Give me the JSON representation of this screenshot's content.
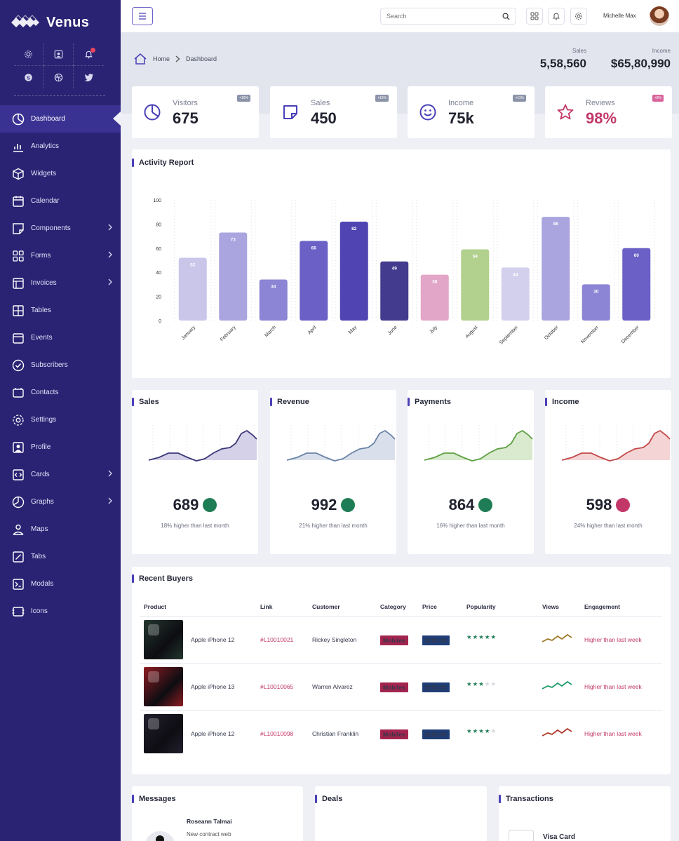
{
  "app": {
    "name": "Venus",
    "user_name": "Michelle Max"
  },
  "sidebar": {
    "quick_icons": [
      "gear-icon",
      "user-card-icon",
      "bell-icon",
      "skype-icon",
      "dribbble-icon",
      "twitter-icon"
    ],
    "items": [
      {
        "label": "Dashboard",
        "icon": "dashboard-icon",
        "active": true,
        "submenu": false
      },
      {
        "label": "Analytics",
        "icon": "analytics-icon",
        "active": false,
        "submenu": false
      },
      {
        "label": "Widgets",
        "icon": "widgets-icon",
        "active": false,
        "submenu": false
      },
      {
        "label": "Calendar",
        "icon": "calendar-icon",
        "active": false,
        "submenu": false
      },
      {
        "label": "Components",
        "icon": "components-icon",
        "active": false,
        "submenu": true
      },
      {
        "label": "Forms",
        "icon": "forms-icon",
        "active": false,
        "submenu": true
      },
      {
        "label": "Invoices",
        "icon": "invoices-icon",
        "active": false,
        "submenu": true
      },
      {
        "label": "Tables",
        "icon": "tables-icon",
        "active": false,
        "submenu": false
      },
      {
        "label": "Events",
        "icon": "events-icon",
        "active": false,
        "submenu": false
      },
      {
        "label": "Subscribers",
        "icon": "subscribers-icon",
        "active": false,
        "submenu": false
      },
      {
        "label": "Contacts",
        "icon": "contacts-icon",
        "active": false,
        "submenu": false
      },
      {
        "label": "Settings",
        "icon": "settings-icon",
        "active": false,
        "submenu": false
      },
      {
        "label": "Profile",
        "icon": "profile-icon",
        "active": false,
        "submenu": false
      },
      {
        "label": "Cards",
        "icon": "cards-icon",
        "active": false,
        "submenu": true
      },
      {
        "label": "Graphs",
        "icon": "graphs-icon",
        "active": false,
        "submenu": true
      },
      {
        "label": "Maps",
        "icon": "maps-icon",
        "active": false,
        "submenu": false
      },
      {
        "label": "Tabs",
        "icon": "tabs-icon",
        "active": false,
        "submenu": false
      },
      {
        "label": "Modals",
        "icon": "modals-icon",
        "active": false,
        "submenu": false
      },
      {
        "label": "Icons",
        "icon": "icons-icon",
        "active": false,
        "submenu": false
      }
    ]
  },
  "topbar": {
    "search_placeholder": "Search"
  },
  "breadcrumb": {
    "home": "Home",
    "current": "Dashboard"
  },
  "header_stats": {
    "sales": {
      "label": "Sales",
      "value": "5,58,560"
    },
    "income": {
      "label": "Income",
      "value": "$65,80,990"
    }
  },
  "stat_cards": [
    {
      "label": "Visitors",
      "value": "675",
      "badge": "+16%",
      "icon": "pie-chart-icon",
      "accent": "#4a40b8",
      "badge_color": "#8b93a8"
    },
    {
      "label": "Sales",
      "value": "450",
      "badge": "+15%",
      "icon": "note-icon",
      "accent": "#4a40b8",
      "badge_color": "#8b93a8"
    },
    {
      "label": "Income",
      "value": "75k",
      "badge": "+11%",
      "icon": "smile-icon",
      "accent": "#4a40b8",
      "badge_color": "#8b93a8"
    },
    {
      "label": "Reviews",
      "value": "98%",
      "badge": "+8%",
      "icon": "star-outline-icon",
      "accent": "#c23768",
      "badge_color": "#d8649b"
    }
  ],
  "activity": {
    "title": "Activity Report"
  },
  "chart_data": {
    "type": "bar",
    "title": "Activity Report",
    "categories": [
      "January",
      "February",
      "March",
      "April",
      "May",
      "June",
      "July",
      "August",
      "September",
      "October",
      "November",
      "December"
    ],
    "values": [
      52,
      73,
      34,
      66,
      82,
      49,
      38,
      59,
      44,
      86,
      30,
      60
    ],
    "colors": [
      "#c9c6ea",
      "#aaa4df",
      "#8c84d4",
      "#6a60c6",
      "#4f44b2",
      "#423b8e",
      "#e2a6c8",
      "#b2d08e",
      "#d3d0ee",
      "#aaa4df",
      "#8c84d4",
      "#6a60c6"
    ],
    "ylim": [
      0,
      100
    ],
    "yticks": [
      0,
      20,
      40,
      60,
      80,
      100
    ],
    "xlabel": "",
    "ylabel": ""
  },
  "mini_cards": [
    {
      "title": "Sales",
      "value": "689",
      "caption": "18% higher than last month",
      "trend": "up",
      "line_color": "#3c3878",
      "fill_color": "#c9c6e2",
      "arrow_color": "#1f7d55"
    },
    {
      "title": "Revenue",
      "value": "992",
      "caption": "21% higher than last month",
      "trend": "up",
      "line_color": "#6a84a8",
      "fill_color": "#cfd8e6",
      "arrow_color": "#1f7d55"
    },
    {
      "title": "Payments",
      "value": "864",
      "caption": "16% higher than last month",
      "trend": "up",
      "line_color": "#5ea042",
      "fill_color": "#cfe5c2",
      "arrow_color": "#1f7d55"
    },
    {
      "title": "Income",
      "value": "598",
      "caption": "24% higher than last month",
      "trend": "down",
      "line_color": "#c24a4a",
      "fill_color": "#f1c9c9",
      "arrow_color": "#c23768"
    }
  ],
  "buyers": {
    "title": "Recent Buyers",
    "columns": [
      "Product",
      "Link",
      "Customer",
      "Category",
      "Price",
      "Popularity",
      "Views",
      "Engagement"
    ],
    "rows": [
      {
        "product": "Apple iPhone 12",
        "link": "#L10010021",
        "customer": "Rickey Singleton",
        "category": "Mobiles",
        "price": "$250.00",
        "stars": 5,
        "views_color": "#a07a2c",
        "engagement": "Higher than last week",
        "phone_color": "#23362e"
      },
      {
        "product": "Apple iPhone 13",
        "link": "#L10010065",
        "customer": "Warren Alvarez",
        "category": "Mobiles",
        "price": "$250.00",
        "stars": 3,
        "views_color": "#1f9b6a",
        "engagement": "Higher than last week",
        "phone_color": "#8e1c22"
      },
      {
        "product": "Apple iPhone 12",
        "link": "#L10010098",
        "customer": "Christian Franklin",
        "category": "Mobiles",
        "price": "$250.00",
        "stars": 4,
        "views_color": "#b03a2a",
        "engagement": "Higher than last week",
        "phone_color": "#231f2e"
      }
    ]
  },
  "bottom": {
    "messages": {
      "title": "Messages",
      "sender": "Roseann Talmai",
      "preview": "New contract web"
    },
    "deals": {
      "title": "Deals"
    },
    "transactions": {
      "title": "Transactions",
      "item": "Visa Card"
    }
  }
}
